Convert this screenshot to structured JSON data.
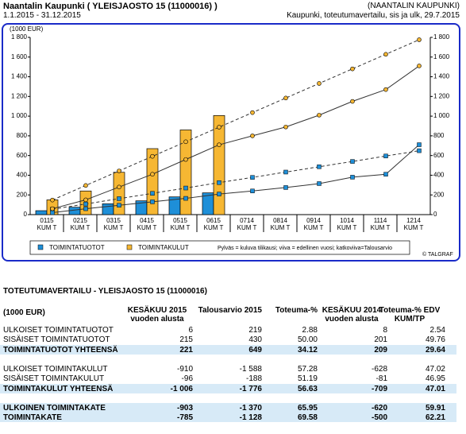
{
  "header": {
    "title": "Naantalin Kaupunki ( YLEISJAOSTO 15 (11000016) )",
    "period": "1.1.2015 - 31.12.2015",
    "org": "(NAANTALIN KAUPUNKI)",
    "report": "Kaupunki, toteutumavertailu, sis ja ulk, 29.7.2015"
  },
  "chart_data": {
    "type": "bar",
    "y_axis_label": "(1000 EUR)",
    "categories": [
      "0115 KUM T",
      "0215 KUM T",
      "0315 KUM T",
      "0415 KUM T",
      "0515 KUM T",
      "0615 KUM T",
      "0714 KUM T",
      "0814 KUM T",
      "0914 KUM T",
      "1014 KUM T",
      "1114 KUM T",
      "1214 KUM T"
    ],
    "ylim": [
      0,
      1800
    ],
    "yticks": [
      0,
      {
        "value": 200,
        "label": "200"
      },
      400,
      600,
      800,
      {
        "value": 1000,
        "label": "1 000"
      },
      {
        "value": 1200,
        "label": "1 200"
      },
      {
        "value": 1400,
        "label": "1 400"
      },
      {
        "value": 1600,
        "label": "1 600"
      },
      {
        "value": 1800,
        "label": "1 800"
      }
    ],
    "series": [
      {
        "name": "TOIMINTATUOTOT",
        "color": "#1e8fd8",
        "values": [
          40,
          75,
          110,
          140,
          180,
          221,
          null,
          null,
          null,
          null,
          null,
          null
        ]
      },
      {
        "name": "TOIMINTAKULUT",
        "color": "#f6b733",
        "values": [
          150,
          240,
          430,
          670,
          860,
          1006,
          null,
          null,
          null,
          null,
          null,
          null
        ]
      }
    ],
    "lines": [
      {
        "style": "dashed",
        "marker": "square",
        "marker_color": "#1e8fd8",
        "color": "#333333",
        "values": [
          55,
          108,
          162,
          216,
          270,
          325,
          378,
          432,
          486,
          540,
          595,
          649
        ]
      },
      {
        "style": "solid",
        "marker": "square",
        "marker_color": "#1e8fd8",
        "color": "#333333",
        "values": [
          20,
          60,
          95,
          130,
          165,
          209,
          240,
          275,
          315,
          380,
          410,
          710
        ]
      },
      {
        "style": "dashed",
        "marker": "circle",
        "marker_color": "#f6b733",
        "color": "#333333",
        "values": [
          148,
          296,
          444,
          592,
          740,
          888,
          1036,
          1184,
          1332,
          1480,
          1628,
          1776
        ]
      },
      {
        "style": "solid",
        "marker": "circle",
        "marker_color": "#f6b733",
        "color": "#333333",
        "values": [
          60,
          150,
          280,
          410,
          560,
          709,
          800,
          890,
          1010,
          1150,
          1270,
          1510
        ]
      }
    ],
    "legend_note": "Pylväs = kuluva tilikausi; viiva = edellinen vuosi; katkoviiva=Talousarvio",
    "credit": "© TALGRAF"
  },
  "table": {
    "title": "TOTEUTUMAVERTAILU - YLEISJAOSTO 15 (11000016)",
    "columns": [
      "(1000 EUR)",
      "KESÄKUU 2015 vuoden alusta",
      "Talousarvio 2015",
      "Toteuma-%",
      "KESÄKUU 2014 vuoden alusta",
      "Toteuma-% EDV KUM/TP"
    ],
    "groups": [
      {
        "rows": [
          [
            "ULKOISET TOIMINTATUOTOT",
            "6",
            "219",
            "2.88",
            "8",
            "2.54"
          ],
          [
            "SISÄISET TOIMINTATUOTOT",
            "215",
            "430",
            "50.00",
            "201",
            "49.76"
          ]
        ],
        "total": [
          "TOIMINTATUOTOT YHTEENSÄ",
          "221",
          "649",
          "34.12",
          "209",
          "29.64"
        ]
      },
      {
        "rows": [
          [
            "ULKOISET TOIMINTAKULUT",
            "-910",
            "-1 588",
            "57.28",
            "-628",
            "47.02"
          ],
          [
            "SISÄISET TOIMINTAKULUT",
            "-96",
            "-188",
            "51.19",
            "-81",
            "46.95"
          ]
        ],
        "total": [
          "TOIMINTAKULUT YHTEENSÄ",
          "-1 006",
          "-1 776",
          "56.63",
          "-709",
          "47.01"
        ]
      },
      {
        "rows": [],
        "total": [
          "ULKOINEN TOIMINTAKATE",
          "-903",
          "-1 370",
          "65.95",
          "-620",
          "59.91"
        ]
      },
      {
        "rows": [],
        "total": [
          "TOIMINTAKATE",
          "-785",
          "-1 128",
          "69.58",
          "-500",
          "62.21"
        ]
      }
    ]
  }
}
